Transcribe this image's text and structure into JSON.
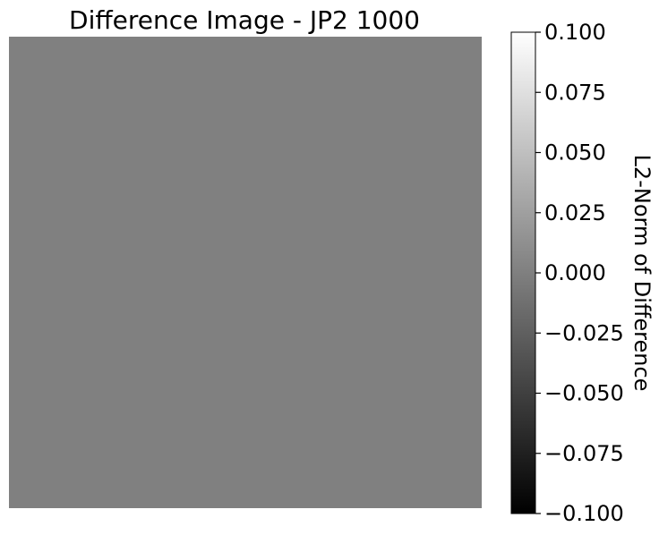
{
  "chart_data": {
    "type": "heatmap",
    "title": "Difference Image - JP2 1000",
    "image_value": 0.0,
    "axes_visible": false,
    "colormap": "gray",
    "colormap_colors": {
      "low": "#000000",
      "high": "#ffffff"
    },
    "colorbar": {
      "label": "L2-Norm of Difference",
      "vmin": -0.1,
      "vmax": 0.1,
      "ticks": [
        -0.1,
        -0.075,
        -0.05,
        -0.025,
        0.0,
        0.025,
        0.05,
        0.075,
        0.1
      ],
      "tick_labels": [
        "−0.100",
        "−0.075",
        "−0.050",
        "−0.025",
        "0.000",
        "0.025",
        "0.050",
        "0.075",
        "0.100"
      ]
    }
  }
}
